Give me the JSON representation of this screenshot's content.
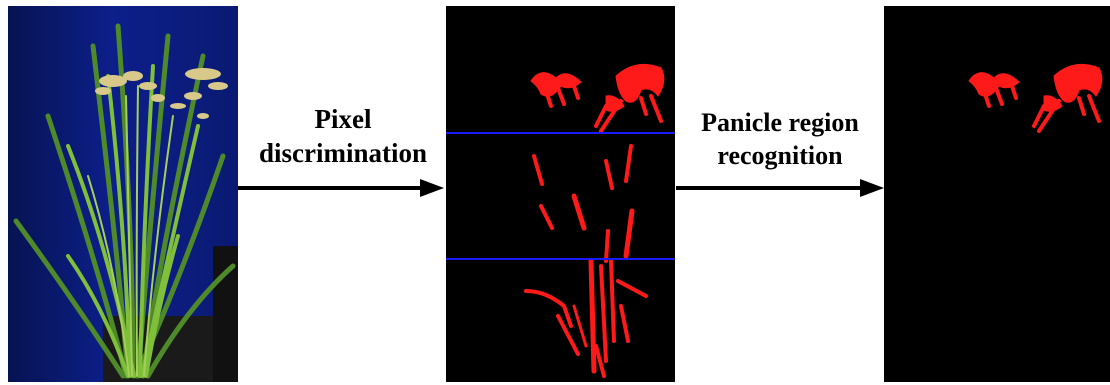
{
  "steps": {
    "step1_label": "Pixel discrimination",
    "step2_label": "Panicle region recognition"
  },
  "panels": {
    "input": "rice-plant-photo",
    "middle": "segmented-mask-with-divisions",
    "output": "panicle-region-mask"
  },
  "colors": {
    "mask_foreground": "#ff1a1a",
    "mask_background": "#000000",
    "divider_line": "#1a1aff",
    "photo_background": "#0d1a6e",
    "arrow": "#000000"
  },
  "icons": [
    "arrow-right-icon",
    "arrow-right-icon"
  ]
}
